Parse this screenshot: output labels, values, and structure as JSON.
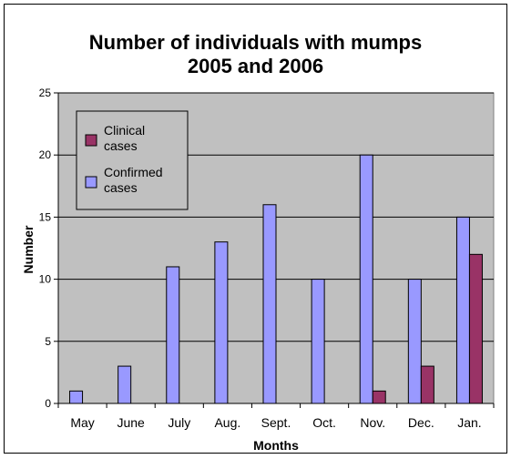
{
  "chart_data": {
    "type": "bar",
    "title_line1": "Number of individuals with mumps",
    "title_line2": "2005 and 2006",
    "xlabel": "Months",
    "ylabel": "Number",
    "ylim": [
      0,
      25
    ],
    "yticks": [
      "0",
      "5",
      "10",
      "15",
      "20",
      "25"
    ],
    "categories": [
      "May",
      "June",
      "July",
      "Aug.",
      "Sept.",
      "Oct.",
      "Nov.",
      "Dec.",
      "Jan."
    ],
    "series": [
      {
        "name": "Confirmed cases",
        "color": "#9999ff",
        "values": [
          1,
          3,
          11,
          13,
          16,
          10,
          20,
          10,
          15
        ]
      },
      {
        "name": "Clinical cases",
        "color": "#993366",
        "values": [
          0,
          0,
          0,
          0,
          0,
          0,
          1,
          3,
          12
        ]
      }
    ],
    "legend": {
      "placement": "top-left",
      "items": [
        {
          "line1": "Clinical",
          "line2": "cases",
          "color": "#993366"
        },
        {
          "line1": "Confirmed",
          "line2": "cases",
          "color": "#9999ff"
        }
      ]
    },
    "plot_background": "#c0c0c0",
    "grid": true
  }
}
